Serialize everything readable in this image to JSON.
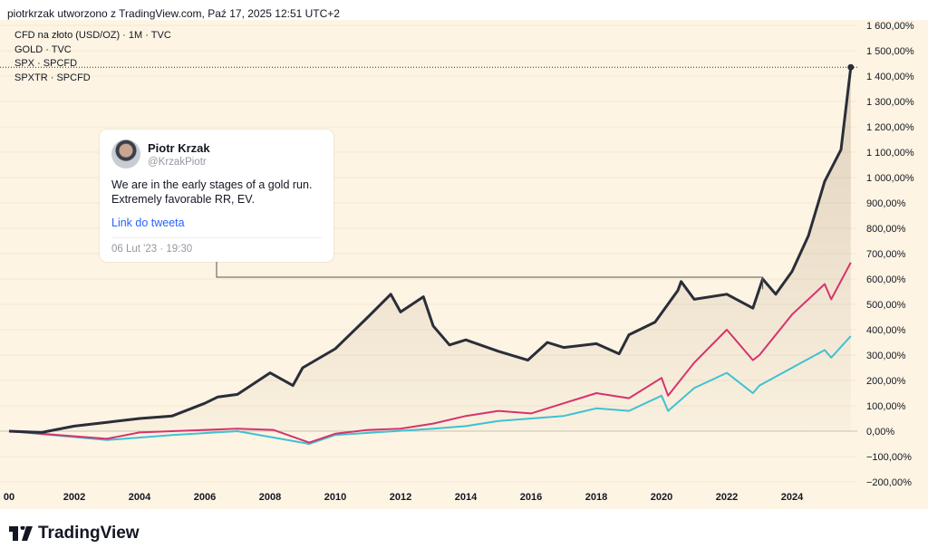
{
  "header": "piotrkrzak utworzono z TradingView.com, Paź 17, 2025 12:51 UTC+2",
  "legend": [
    "CFD na złoto (USD/OZ) · 1M · TVC",
    "GOLD · TVC",
    "SPX · SPCFD",
    "SPXTR · SPCFD"
  ],
  "tweet": {
    "name": "Piotr Krzak",
    "handle": "@KrzakPiotr",
    "text": "We are in the early stages of a gold run. Extremely favorable RR, EV.",
    "link": "Link do tweeta",
    "date": "06 Lut '23 · 19:30"
  },
  "logo": "TradingView",
  "chart_data": {
    "type": "line",
    "xlim": [
      2000,
      2026
    ],
    "ylim": [
      -200,
      1600
    ],
    "x_ticks": [
      "00",
      "2002",
      "2004",
      "2006",
      "2008",
      "2010",
      "2012",
      "2014",
      "2016",
      "2018",
      "2020",
      "2022",
      "2024"
    ],
    "y_ticks": [
      "1 600,00%",
      "1 500,00%",
      "1 400,00%",
      "1 300,00%",
      "1 200,00%",
      "1 100,00%",
      "1 000,00%",
      "900,00%",
      "800,00%",
      "700,00%",
      "600,00%",
      "500,00%",
      "400,00%",
      "300,00%",
      "200,00%",
      "100,00%",
      "0,00%",
      "−100,00%",
      "−200,00%"
    ],
    "colors": {
      "gold": "#2a2e39",
      "spx": "#d6336c",
      "spxtr": "#3fc1d3",
      "background": "#fdf4e3"
    },
    "series": [
      {
        "key": "gold",
        "x": [
          2000,
          2001,
          2002,
          2003,
          2004,
          2005,
          2006,
          2006.4,
          2007,
          2008,
          2008.7,
          2009,
          2010,
          2011,
          2011.7,
          2012,
          2012.7,
          2013,
          2013.5,
          2014,
          2015,
          2015.9,
          2016.5,
          2017,
          2018,
          2018.7,
          2019,
          2019.8,
          2020.5,
          2020.6,
          2021,
          2022,
          2022.8,
          2023.1,
          2023.5,
          2024,
          2024.5,
          2025,
          2025.5,
          2025.8
        ],
        "y": [
          0,
          -5,
          20,
          35,
          50,
          60,
          110,
          135,
          145,
          230,
          180,
          250,
          325,
          450,
          540,
          470,
          530,
          415,
          340,
          360,
          315,
          280,
          350,
          330,
          345,
          305,
          380,
          430,
          555,
          590,
          520,
          540,
          485,
          600,
          540,
          630,
          770,
          985,
          1110,
          1435
        ]
      },
      {
        "key": "spx",
        "x": [
          2000,
          2002,
          2003,
          2004,
          2007,
          2008.1,
          2009.2,
          2010,
          2011,
          2012,
          2013,
          2014,
          2015,
          2016,
          2017,
          2018,
          2019,
          2020,
          2020.2,
          2021,
          2022,
          2022.8,
          2023,
          2024,
          2025,
          2025.2,
          2025.8
        ],
        "y": [
          0,
          -20,
          -30,
          -5,
          10,
          5,
          -45,
          -10,
          5,
          10,
          30,
          60,
          80,
          70,
          110,
          150,
          130,
          210,
          140,
          270,
          400,
          280,
          300,
          460,
          580,
          520,
          665
        ]
      },
      {
        "key": "spxtr",
        "x": [
          2000,
          2003,
          2005,
          2007,
          2009.2,
          2010,
          2013,
          2014,
          2015,
          2016,
          2017,
          2018,
          2019,
          2020,
          2020.2,
          2021,
          2022,
          2022.8,
          2023,
          2024,
          2025,
          2025.2,
          2025.8
        ],
        "y": [
          0,
          -35,
          -15,
          0,
          -50,
          -15,
          10,
          20,
          40,
          50,
          60,
          90,
          80,
          140,
          80,
          170,
          230,
          150,
          180,
          250,
          320,
          290,
          375
        ]
      }
    ]
  }
}
